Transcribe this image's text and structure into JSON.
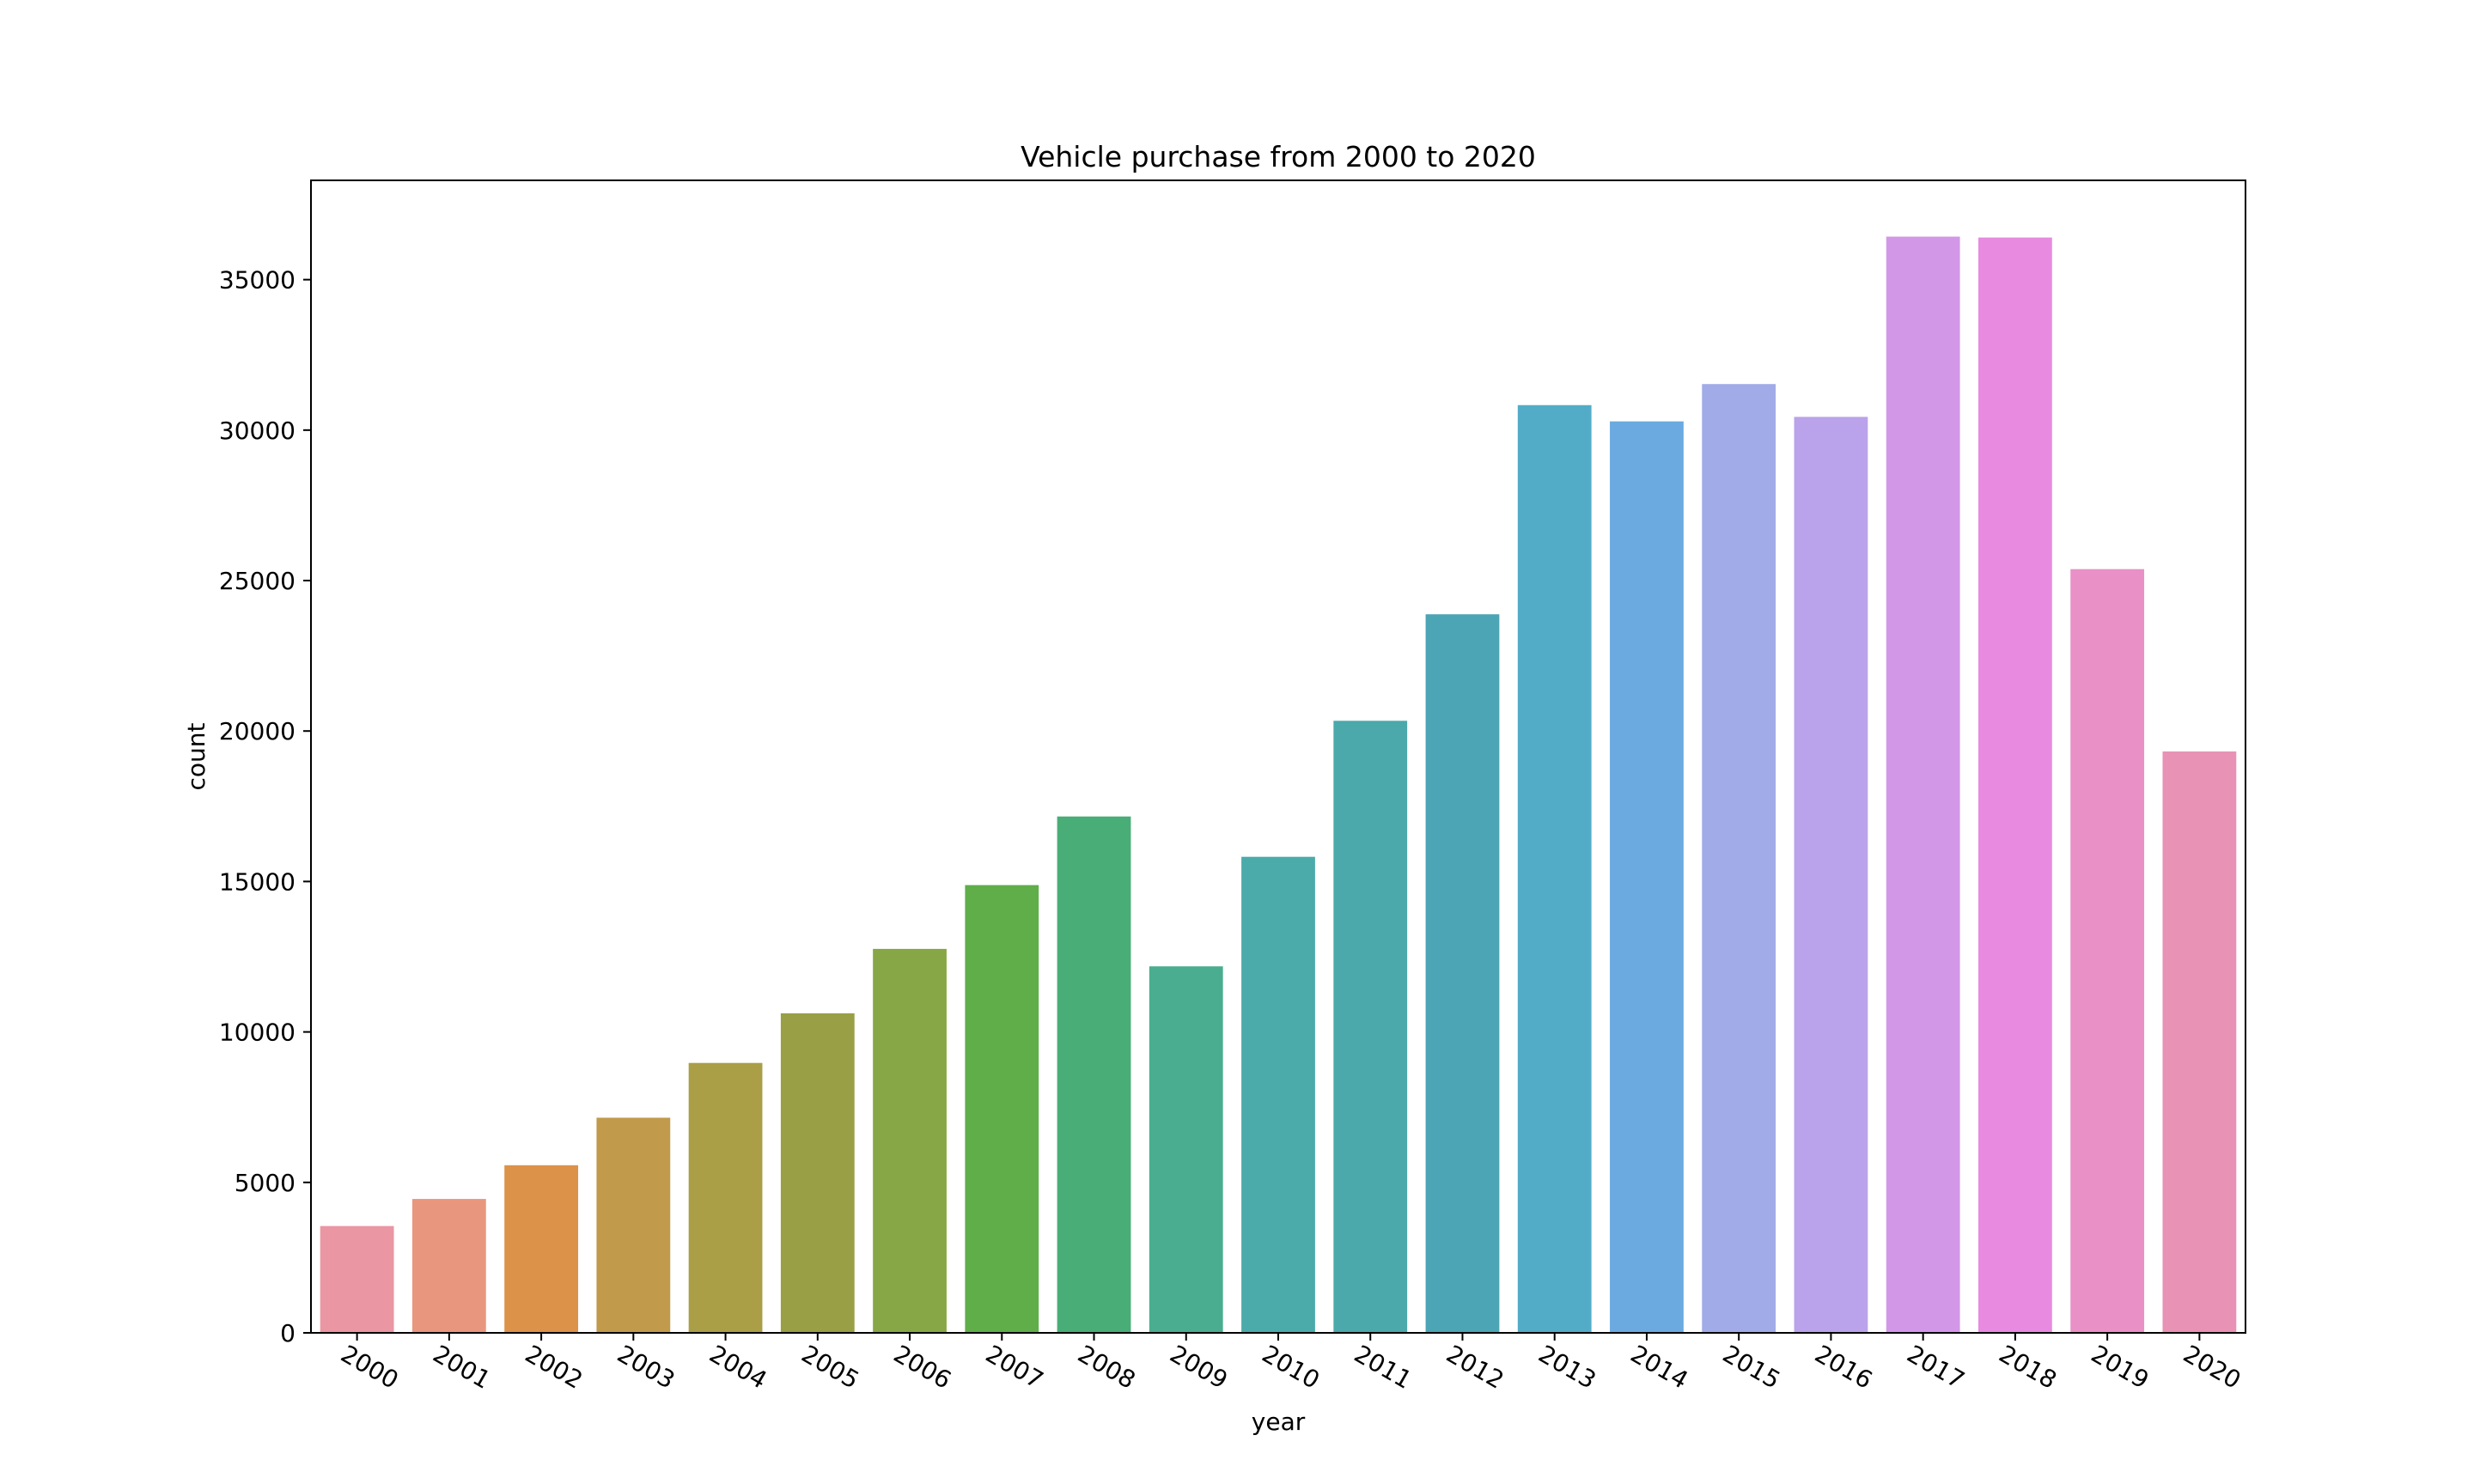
{
  "chart_data": {
    "type": "bar",
    "title": "Vehicle purchase from 2000 to 2020",
    "xlabel": "year",
    "ylabel": "count",
    "categories": [
      "2000",
      "2001",
      "2002",
      "2003",
      "2004",
      "2005",
      "2006",
      "2007",
      "2008",
      "2009",
      "2010",
      "2011",
      "2012",
      "2013",
      "2014",
      "2015",
      "2016",
      "2017",
      "2018",
      "2019",
      "2020"
    ],
    "values": [
      3550,
      4450,
      5570,
      7150,
      8970,
      10620,
      12760,
      14880,
      17160,
      12180,
      15820,
      20340,
      23880,
      30830,
      30290,
      31530,
      30440,
      36430,
      36400,
      25380,
      19320
    ],
    "colors": [
      "#ea96a3",
      "#e9967e",
      "#dc9248",
      "#c19a4b",
      "#aa9e47",
      "#999f44",
      "#87a746",
      "#5fae4a",
      "#49ad77",
      "#4aad8f",
      "#4babaa",
      "#4ba8ab",
      "#4ba5b4",
      "#52acc8",
      "#6aaae0",
      "#a1abe7",
      "#baa3ea",
      "#d397e8",
      "#e78ae0",
      "#e990c7",
      "#e892b5"
    ],
    "yticks": [
      0,
      5000,
      10000,
      15000,
      20000,
      25000,
      30000,
      35000
    ],
    "ylim": [
      0,
      38300
    ],
    "grid": false,
    "legend": false
  }
}
